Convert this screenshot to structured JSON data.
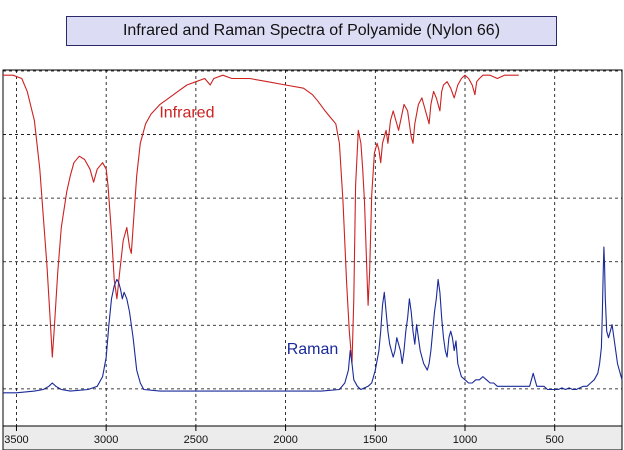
{
  "chart_data": {
    "type": "line",
    "title": "Infrared and Raman Spectra of Polyamide (Nylon 66)",
    "xlabel": "",
    "ylabel": "",
    "x_reversed": true,
    "xlim": [
      3575,
      125
    ],
    "ylim": [
      0,
      100
    ],
    "x_ticks": [
      3500,
      3000,
      2500,
      2000,
      1500,
      1000,
      500
    ],
    "grid": true,
    "legend": "none",
    "series": [
      {
        "name": "Infrared",
        "color": "#cc2222",
        "label_anchor": [
          2550,
          86
        ],
        "points": [
          [
            3575,
            99
          ],
          [
            3520,
            99
          ],
          [
            3470,
            98
          ],
          [
            3440,
            94
          ],
          [
            3400,
            85
          ],
          [
            3370,
            70
          ],
          [
            3350,
            55
          ],
          [
            3330,
            40
          ],
          [
            3310,
            22
          ],
          [
            3300,
            12
          ],
          [
            3290,
            20
          ],
          [
            3270,
            38
          ],
          [
            3250,
            52
          ],
          [
            3220,
            63
          ],
          [
            3200,
            68
          ],
          [
            3180,
            72
          ],
          [
            3150,
            74
          ],
          [
            3120,
            73
          ],
          [
            3090,
            70
          ],
          [
            3070,
            66
          ],
          [
            3050,
            70
          ],
          [
            3020,
            72
          ],
          [
            3000,
            70
          ],
          [
            2990,
            65
          ],
          [
            2970,
            50
          ],
          [
            2955,
            36
          ],
          [
            2940,
            30
          ],
          [
            2925,
            38
          ],
          [
            2905,
            48
          ],
          [
            2885,
            52
          ],
          [
            2870,
            46
          ],
          [
            2860,
            44
          ],
          [
            2850,
            52
          ],
          [
            2830,
            68
          ],
          [
            2810,
            78
          ],
          [
            2780,
            84
          ],
          [
            2750,
            87
          ],
          [
            2700,
            90
          ],
          [
            2650,
            92
          ],
          [
            2600,
            94
          ],
          [
            2550,
            96
          ],
          [
            2500,
            97
          ],
          [
            2450,
            98
          ],
          [
            2420,
            96
          ],
          [
            2400,
            98
          ],
          [
            2350,
            99
          ],
          [
            2300,
            98
          ],
          [
            2200,
            98
          ],
          [
            2100,
            97
          ],
          [
            2000,
            96
          ],
          [
            1900,
            95
          ],
          [
            1850,
            93
          ],
          [
            1820,
            91
          ],
          [
            1780,
            88
          ],
          [
            1750,
            86
          ],
          [
            1720,
            84
          ],
          [
            1700,
            78
          ],
          [
            1680,
            60
          ],
          [
            1660,
            35
          ],
          [
            1645,
            20
          ],
          [
            1630,
            10
          ],
          [
            1620,
            30
          ],
          [
            1610,
            65
          ],
          [
            1595,
            82
          ],
          [
            1580,
            78
          ],
          [
            1570,
            70
          ],
          [
            1560,
            60
          ],
          [
            1548,
            40
          ],
          [
            1540,
            28
          ],
          [
            1532,
            38
          ],
          [
            1520,
            62
          ],
          [
            1505,
            75
          ],
          [
            1490,
            78
          ],
          [
            1480,
            76
          ],
          [
            1470,
            72
          ],
          [
            1460,
            78
          ],
          [
            1450,
            80
          ],
          [
            1440,
            82
          ],
          [
            1430,
            78
          ],
          [
            1415,
            85
          ],
          [
            1400,
            88
          ],
          [
            1385,
            85
          ],
          [
            1370,
            82
          ],
          [
            1355,
            86
          ],
          [
            1340,
            90
          ],
          [
            1320,
            88
          ],
          [
            1300,
            80
          ],
          [
            1290,
            78
          ],
          [
            1280,
            84
          ],
          [
            1260,
            90
          ],
          [
            1240,
            92
          ],
          [
            1220,
            88
          ],
          [
            1200,
            84
          ],
          [
            1190,
            90
          ],
          [
            1175,
            94
          ],
          [
            1160,
            92
          ],
          [
            1140,
            88
          ],
          [
            1130,
            94
          ],
          [
            1120,
            96
          ],
          [
            1100,
            97
          ],
          [
            1080,
            95
          ],
          [
            1060,
            92
          ],
          [
            1040,
            96
          ],
          [
            1020,
            98
          ],
          [
            1000,
            99
          ],
          [
            980,
            98
          ],
          [
            960,
            96
          ],
          [
            945,
            93
          ],
          [
            935,
            97
          ],
          [
            920,
            98
          ],
          [
            900,
            99
          ],
          [
            860,
            99
          ],
          [
            820,
            98
          ],
          [
            780,
            99
          ],
          [
            720,
            99
          ],
          [
            700,
            99
          ]
        ]
      },
      {
        "name": "Raman",
        "color": "#1a2a9a",
        "label_anchor": [
          1850,
          13
        ],
        "points": [
          [
            3575,
            1
          ],
          [
            3500,
            1
          ],
          [
            3400,
            1.5
          ],
          [
            3350,
            2
          ],
          [
            3320,
            3
          ],
          [
            3300,
            4
          ],
          [
            3280,
            3
          ],
          [
            3250,
            2
          ],
          [
            3200,
            1.5
          ],
          [
            3100,
            2
          ],
          [
            3050,
            3
          ],
          [
            3020,
            6
          ],
          [
            3000,
            12
          ],
          [
            2985,
            22
          ],
          [
            2970,
            30
          ],
          [
            2955,
            34
          ],
          [
            2940,
            36
          ],
          [
            2930,
            35
          ],
          [
            2920,
            33
          ],
          [
            2910,
            30
          ],
          [
            2900,
            32
          ],
          [
            2885,
            30
          ],
          [
            2870,
            26
          ],
          [
            2850,
            18
          ],
          [
            2830,
            8
          ],
          [
            2810,
            4
          ],
          [
            2790,
            2
          ],
          [
            2700,
            1.5
          ],
          [
            2500,
            1.5
          ],
          [
            2300,
            1.5
          ],
          [
            2100,
            1.5
          ],
          [
            1900,
            1.5
          ],
          [
            1800,
            1.5
          ],
          [
            1700,
            2
          ],
          [
            1670,
            4
          ],
          [
            1650,
            8
          ],
          [
            1640,
            14
          ],
          [
            1630,
            10
          ],
          [
            1620,
            5
          ],
          [
            1600,
            3
          ],
          [
            1580,
            2
          ],
          [
            1560,
            2.5
          ],
          [
            1540,
            3
          ],
          [
            1520,
            4
          ],
          [
            1500,
            8
          ],
          [
            1480,
            14
          ],
          [
            1470,
            20
          ],
          [
            1460,
            28
          ],
          [
            1450,
            32
          ],
          [
            1440,
            26
          ],
          [
            1430,
            20
          ],
          [
            1420,
            16
          ],
          [
            1410,
            14
          ],
          [
            1400,
            12
          ],
          [
            1390,
            14
          ],
          [
            1380,
            18
          ],
          [
            1370,
            16
          ],
          [
            1360,
            14
          ],
          [
            1350,
            10
          ],
          [
            1340,
            14
          ],
          [
            1330,
            20
          ],
          [
            1320,
            24
          ],
          [
            1310,
            30
          ],
          [
            1300,
            26
          ],
          [
            1290,
            20
          ],
          [
            1280,
            16
          ],
          [
            1270,
            22
          ],
          [
            1260,
            18
          ],
          [
            1250,
            14
          ],
          [
            1240,
            12
          ],
          [
            1230,
            10
          ],
          [
            1220,
            9
          ],
          [
            1210,
            8
          ],
          [
            1200,
            10
          ],
          [
            1190,
            14
          ],
          [
            1180,
            20
          ],
          [
            1170,
            26
          ],
          [
            1160,
            30
          ],
          [
            1150,
            36
          ],
          [
            1140,
            32
          ],
          [
            1130,
            24
          ],
          [
            1120,
            18
          ],
          [
            1110,
            14
          ],
          [
            1100,
            12
          ],
          [
            1090,
            18
          ],
          [
            1080,
            20
          ],
          [
            1070,
            18
          ],
          [
            1060,
            14
          ],
          [
            1050,
            17
          ],
          [
            1040,
            10
          ],
          [
            1030,
            8
          ],
          [
            1020,
            6
          ],
          [
            1000,
            5
          ],
          [
            980,
            4
          ],
          [
            960,
            4
          ],
          [
            940,
            5
          ],
          [
            920,
            5
          ],
          [
            900,
            6
          ],
          [
            880,
            5
          ],
          [
            860,
            4
          ],
          [
            840,
            4
          ],
          [
            820,
            3
          ],
          [
            800,
            3
          ],
          [
            780,
            3
          ],
          [
            760,
            3
          ],
          [
            740,
            3
          ],
          [
            720,
            3
          ],
          [
            700,
            3
          ],
          [
            680,
            3
          ],
          [
            660,
            3
          ],
          [
            640,
            3
          ],
          [
            630,
            5
          ],
          [
            620,
            7
          ],
          [
            610,
            5
          ],
          [
            600,
            3
          ],
          [
            580,
            3
          ],
          [
            560,
            3
          ],
          [
            540,
            2
          ],
          [
            520,
            2
          ],
          [
            500,
            2
          ],
          [
            480,
            2
          ],
          [
            460,
            2.5
          ],
          [
            440,
            2
          ],
          [
            420,
            2.5
          ],
          [
            400,
            2
          ],
          [
            380,
            2
          ],
          [
            360,
            2.5
          ],
          [
            340,
            3
          ],
          [
            320,
            3
          ],
          [
            300,
            4
          ],
          [
            280,
            5
          ],
          [
            260,
            7
          ],
          [
            250,
            10
          ],
          [
            240,
            15
          ],
          [
            235,
            25
          ],
          [
            230,
            38
          ],
          [
            226,
            46
          ],
          [
            222,
            40
          ],
          [
            218,
            30
          ],
          [
            210,
            20
          ],
          [
            200,
            18
          ],
          [
            190,
            20
          ],
          [
            180,
            22
          ],
          [
            170,
            18
          ],
          [
            160,
            14
          ],
          [
            150,
            10
          ],
          [
            140,
            8
          ],
          [
            130,
            6
          ],
          [
            125,
            5
          ]
        ]
      }
    ]
  }
}
